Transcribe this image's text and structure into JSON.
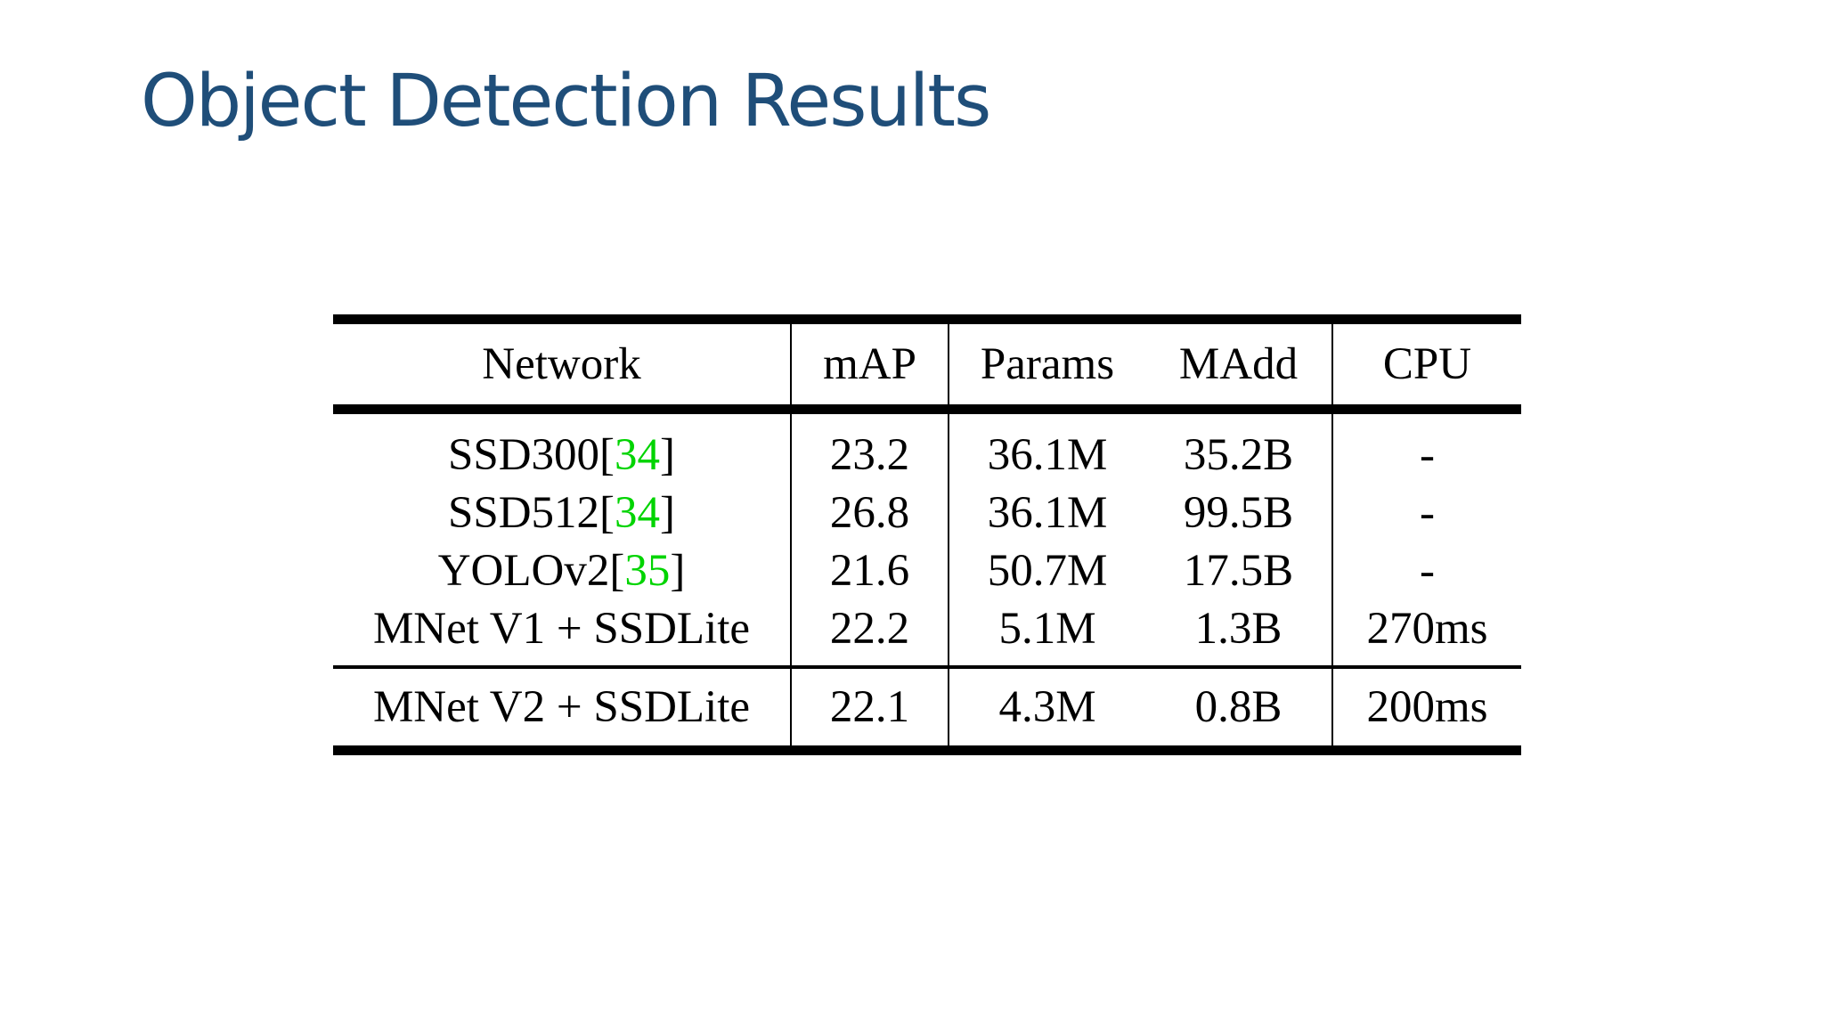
{
  "slide": {
    "title": "Object Detection Results"
  },
  "table": {
    "headers": [
      "Network",
      "mAP",
      "Params",
      "MAdd",
      "CPU"
    ],
    "rows": [
      {
        "network": "SSD300",
        "citation": "34",
        "map": "23.2",
        "params": "36.1M",
        "madd": "35.2B",
        "cpu": "-"
      },
      {
        "network": "SSD512",
        "citation": "34",
        "map": "26.8",
        "params": "36.1M",
        "madd": "99.5B",
        "cpu": "-"
      },
      {
        "network": "YOLOv2",
        "citation": "35",
        "map": "21.6",
        "params": "50.7M",
        "madd": "17.5B",
        "cpu": "-"
      },
      {
        "network": "MNet V1 + SSDLite",
        "map": "22.2",
        "params": "5.1M",
        "madd": "1.3B",
        "cpu": "270ms"
      }
    ],
    "final_row": {
      "network": "MNet V2 + SSDLite",
      "map": "22.1",
      "params": "4.3M",
      "madd": "0.8B",
      "cpu": "200ms"
    },
    "citation_color": "#00d400"
  },
  "colors": {
    "title": "#1f4e79",
    "text": "#000000",
    "background": "#ffffff"
  }
}
